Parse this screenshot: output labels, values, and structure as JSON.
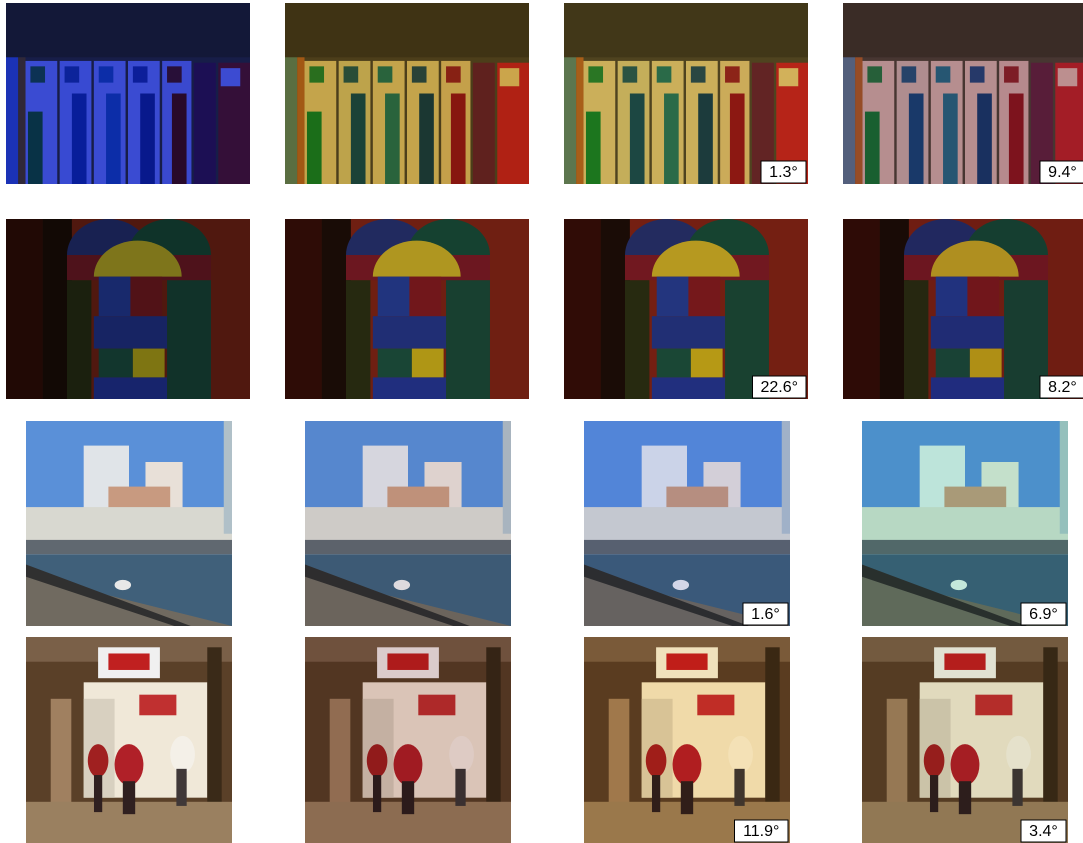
{
  "rows": [
    {
      "labels": [
        "1.3°",
        "9.4°"
      ]
    },
    {
      "labels": [
        "22.6°",
        "8.2°"
      ]
    },
    {
      "labels": [
        "1.6°",
        "6.9°"
      ]
    },
    {
      "labels": [
        "11.9°",
        "3.4°"
      ]
    }
  ]
}
